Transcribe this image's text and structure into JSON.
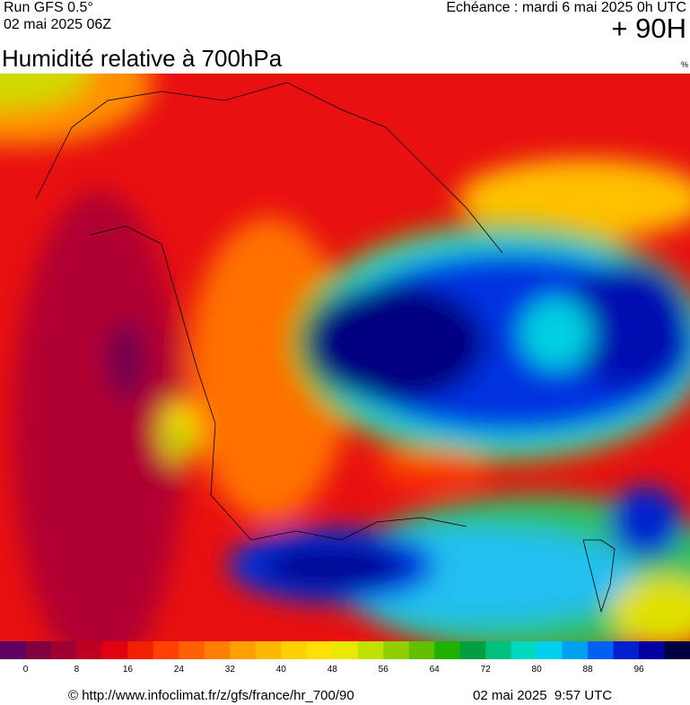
{
  "header": {
    "run": "Run GFS 0.5°",
    "date": "02 mai 2025 06Z",
    "echeance": "Echéance : mardi 6 mai 2025 0h UTC",
    "lead": "+ 90H"
  },
  "title": "Humidité relative à 700hPa",
  "unit": "%",
  "legend": {
    "colors": [
      "#600060",
      "#800040",
      "#a00030",
      "#c00020",
      "#e00010",
      "#f02000",
      "#ff4000",
      "#ff6000",
      "#ff8000",
      "#ffa000",
      "#ffb800",
      "#ffd000",
      "#ffe000",
      "#e8e800",
      "#c0e000",
      "#90d000",
      "#60c000",
      "#20b000",
      "#00a040",
      "#00c080",
      "#00d8c0",
      "#00d0f0",
      "#00a0f0",
      "#0060f0",
      "#0020d0",
      "#0000a0",
      "#000040"
    ],
    "ticks": [
      0,
      8,
      16,
      24,
      32,
      40,
      48,
      56,
      64,
      72,
      80,
      88,
      96
    ]
  },
  "footer": {
    "url": "© http://www.infoclimat.fr/z/gfs/france/hr_700/90",
    "time": "02 mai 2025  9:57 UTC"
  }
}
